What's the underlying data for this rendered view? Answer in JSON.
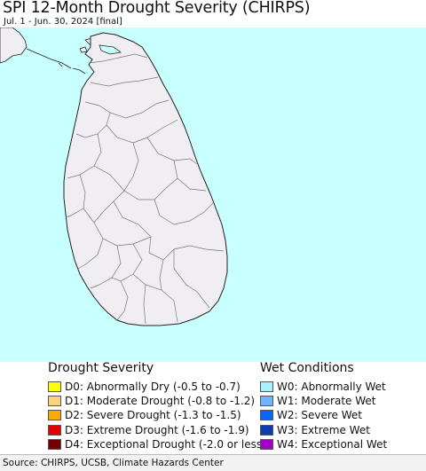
{
  "header": {
    "title": "SPI 12-Month Drought Severity (CHIRPS)",
    "subtitle": "Jul. 1 - Jun. 30, 2024 [final]"
  },
  "map": {
    "region": "Sri Lanka",
    "ocean_color": "#c8ffff",
    "land_color": "#f0eef3",
    "border_color": "#777777",
    "coast_color": "#222222"
  },
  "legend": {
    "drought": {
      "title": "Drought Severity",
      "items": [
        {
          "label": "D0: Abnormally Dry (-0.5 to -0.7)",
          "color": "#ffff00"
        },
        {
          "label": "D1: Moderate Drought (-0.8 to -1.2)",
          "color": "#fcd37f"
        },
        {
          "label": "D2: Severe Drought (-1.3 to -1.5)",
          "color": "#ffaa00"
        },
        {
          "label": "D3: Extreme Drought (-1.6 to -1.9)",
          "color": "#e60000"
        },
        {
          "label": "D4: Exceptional Drought (-2.0 or less)",
          "color": "#730000"
        }
      ]
    },
    "wet": {
      "title": "Wet Conditions",
      "items": [
        {
          "label": "W0: Abnormally Wet",
          "color": "#aaf0ff"
        },
        {
          "label": "W1: Moderate Wet",
          "color": "#6fb4ff"
        },
        {
          "label": "W2: Severe Wet",
          "color": "#0a64ff"
        },
        {
          "label": "W3: Extreme Wet",
          "color": "#0c3cad"
        },
        {
          "label": "W4: Exceptional Wet",
          "color": "#a000c8"
        }
      ]
    }
  },
  "footer": {
    "source": "Source: CHIRPS, UCSB, Climate Hazards Center"
  }
}
